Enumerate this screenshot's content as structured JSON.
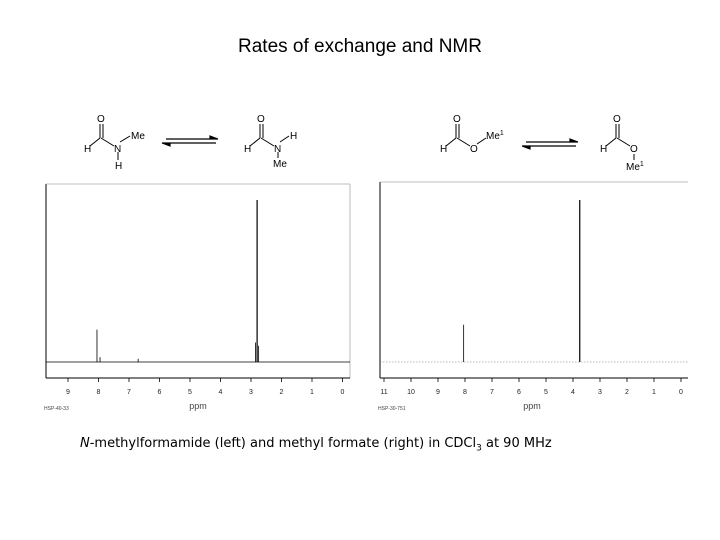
{
  "slide": {
    "title": "Rates of exchange and NMR"
  },
  "left_scheme": {
    "molecule_a": {
      "atoms": {
        "o": "O",
        "h_left": "H",
        "n": "N",
        "me": "Me",
        "h_n": "H"
      }
    },
    "molecule_b": {
      "atoms": {
        "o": "O",
        "h_left": "H",
        "n": "N",
        "h_n": "H",
        "me": "Me"
      }
    }
  },
  "right_scheme": {
    "molecule_a": {
      "atoms": {
        "o_carbonyl": "O",
        "h_left": "H",
        "o_ester": "O",
        "me": "Me",
        "me_sup": "1"
      }
    },
    "molecule_b": {
      "atoms": {
        "o_carbonyl": "O",
        "h_left": "H",
        "o_ester": "O",
        "me": "Me",
        "me_sup": "1"
      }
    }
  },
  "left_spectrum": {
    "axis_ticks": [
      "9",
      "8",
      "7",
      "6",
      "5",
      "4",
      "3",
      "2",
      "1",
      "0"
    ],
    "axis_label": "ppm",
    "file_id": "HSP-40-33",
    "peaks": [
      {
        "ppm": 8.05,
        "height": 0.2
      },
      {
        "ppm": 7.95,
        "height": 0.03
      },
      {
        "ppm": 6.7,
        "height": 0.02
      },
      {
        "ppm": 2.85,
        "height": 0.12
      },
      {
        "ppm": 2.8,
        "height": 1.0
      },
      {
        "ppm": 2.75,
        "height": 0.1
      }
    ]
  },
  "right_spectrum": {
    "axis_ticks": [
      "11",
      "10",
      "9",
      "8",
      "7",
      "6",
      "5",
      "4",
      "3",
      "2",
      "1",
      "0"
    ],
    "axis_label": "ppm",
    "file_id": "HSP-30-751",
    "peaks": [
      {
        "ppm": 8.05,
        "height": 0.23
      },
      {
        "ppm": 3.75,
        "height": 1.0
      }
    ]
  },
  "caption": {
    "italic": "N",
    "text1": "-methylformamide (left) and methyl formate (right) in CDCl",
    "sub": "3",
    "text2": " at 90 MHz"
  }
}
